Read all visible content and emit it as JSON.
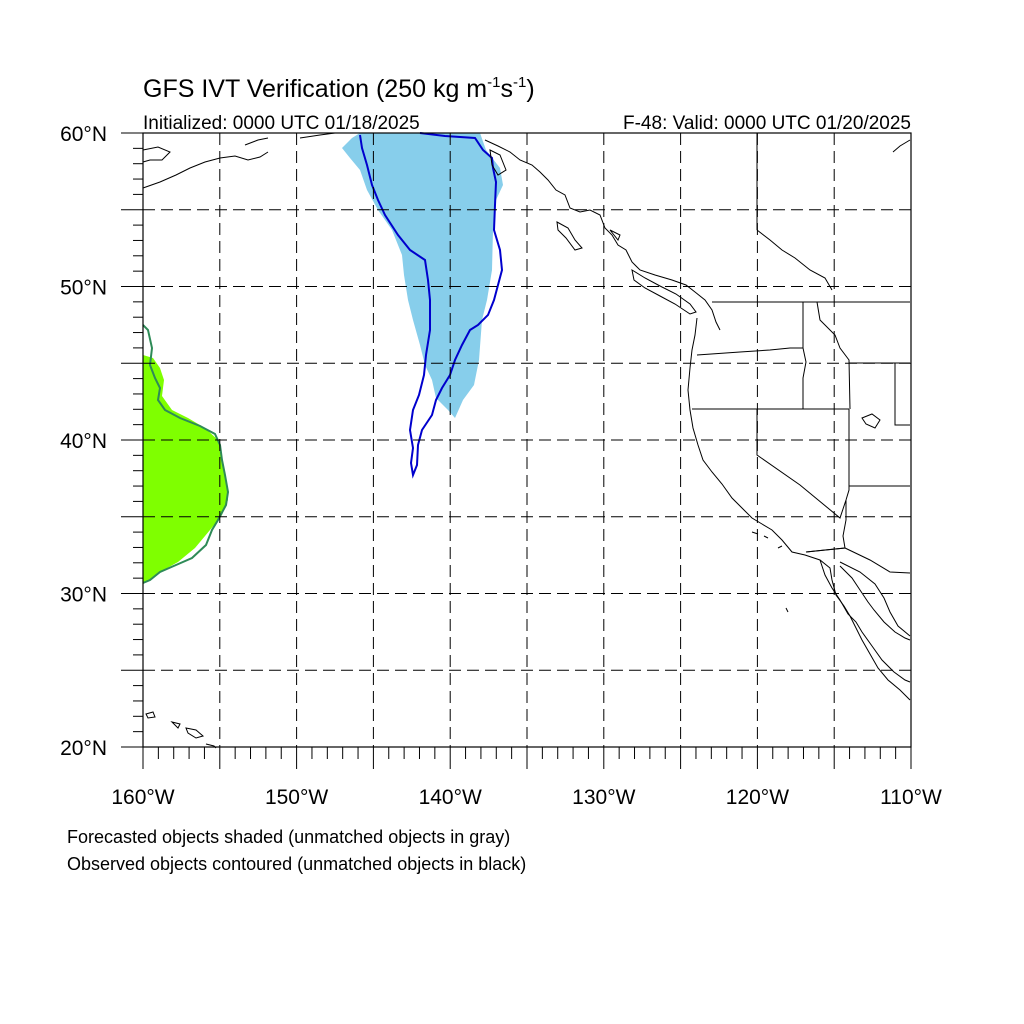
{
  "title": {
    "main": "GFS IVT Verification (250 kg m",
    "sup1": "-1",
    "mid": "s",
    "sup2": "-1",
    "close": ")"
  },
  "subtitle": {
    "left": "Initialized: 0000 UTC 01/18/2025",
    "right": "F-48: Valid: 0000 UTC 01/20/2025"
  },
  "axes": {
    "lon_range": [
      -160,
      -110
    ],
    "lat_range": [
      20,
      60
    ],
    "x_ticks": [
      "160°W",
      "150°W",
      "140°W",
      "130°W",
      "120°W",
      "110°W"
    ],
    "y_ticks": [
      "60°N",
      "50°N",
      "40°N",
      "30°N",
      "20°N"
    ],
    "grid": "dashed every 5°"
  },
  "captions": [
    "Forecasted objects shaded (unmatched objects in gray)",
    "Observed objects contoured (unmatched objects in black)"
  ],
  "colors": {
    "forecast_object_1": "#87ceeb",
    "observed_contour_1": "#0000cd",
    "forecast_object_2": "#7fff00",
    "observed_contour_2": "#2e8b57",
    "coast": "#000000"
  }
}
